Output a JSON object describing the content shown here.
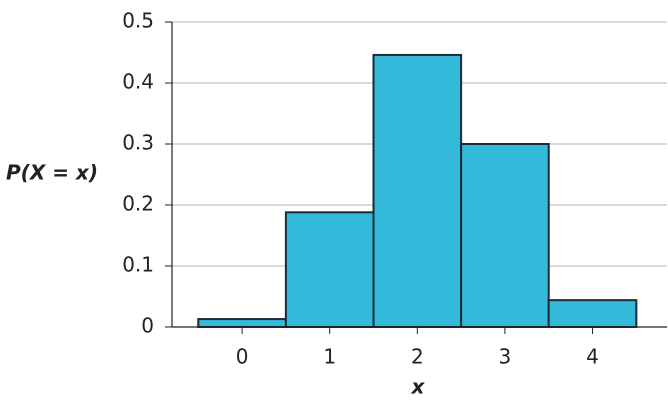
{
  "chart_data": {
    "type": "histogram",
    "bins": [
      -0.5,
      0.5,
      1.5,
      2.5,
      3.5,
      4.5
    ],
    "values": [
      0.013,
      0.188,
      0.446,
      0.3,
      0.044
    ],
    "color": "#33b9d9",
    "edge_color": "#1b2b38",
    "x_label": "x",
    "y_label": "P(X = x)",
    "xlim": [
      -0.8,
      4.85
    ],
    "xticks": [
      0,
      1,
      2,
      3,
      4
    ],
    "ylim": [
      0,
      0.5
    ],
    "yticks": [
      0,
      0.1,
      0.2,
      0.3,
      0.4,
      0.5
    ],
    "grid": true
  }
}
